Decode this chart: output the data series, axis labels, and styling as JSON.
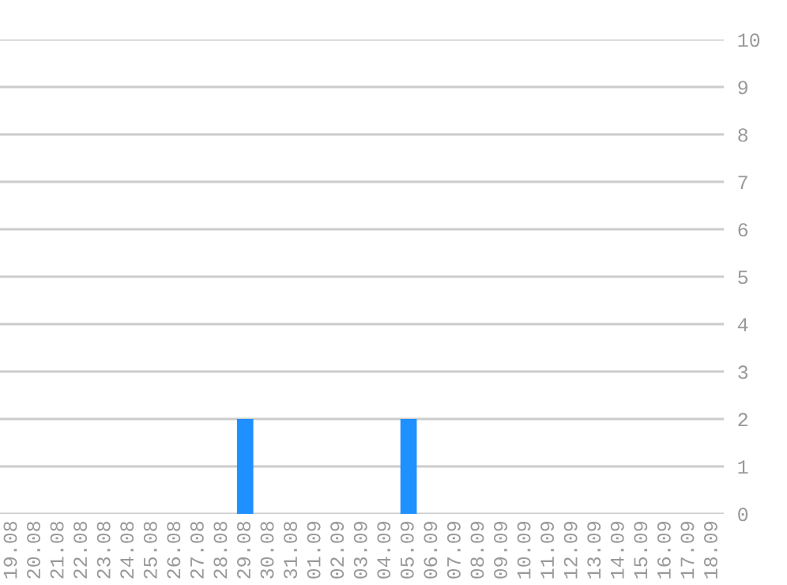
{
  "chart_data": {
    "type": "bar",
    "categories": [
      "19.08",
      "20.08",
      "21.08",
      "22.08",
      "23.08",
      "24.08",
      "25.08",
      "26.08",
      "27.08",
      "28.08",
      "29.08",
      "30.08",
      "31.08",
      "01.09",
      "02.09",
      "03.09",
      "04.09",
      "05.09",
      "06.09",
      "07.09",
      "08.09",
      "09.09",
      "10.09",
      "11.09",
      "12.09",
      "13.09",
      "14.09",
      "15.09",
      "16.09",
      "17.09",
      "18.09"
    ],
    "values": [
      0,
      0,
      0,
      0,
      0,
      0,
      0,
      0,
      0,
      0,
      2,
      0,
      0,
      0,
      0,
      0,
      0,
      2,
      0,
      0,
      0,
      0,
      0,
      0,
      0,
      0,
      0,
      0,
      0,
      0,
      0
    ],
    "color": "#1e90ff",
    "ylim": [
      0,
      10
    ],
    "yticks": [
      0,
      1,
      2,
      3,
      4,
      5,
      6,
      7,
      8,
      9,
      10
    ],
    "grid": "y"
  }
}
